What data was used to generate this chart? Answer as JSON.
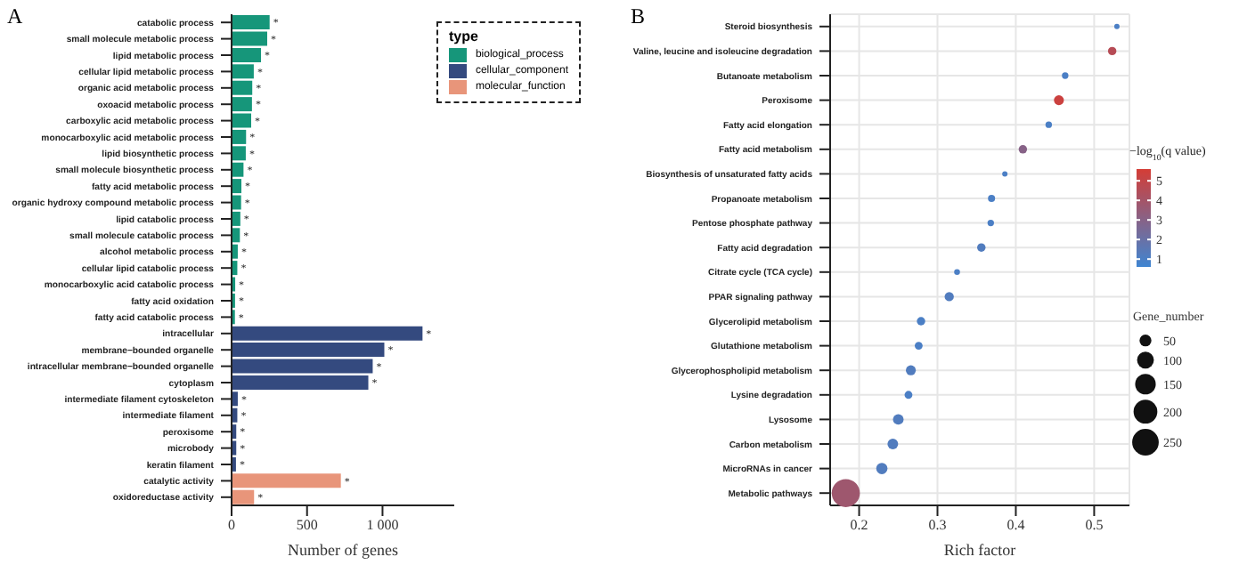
{
  "chart_data": [
    {
      "type": "bar",
      "orientation": "horizontal",
      "annotations": [
        "A"
      ],
      "xlabel": "Number of genes",
      "legend_title": "type",
      "legend": "top right",
      "categories": [
        "catabolic process",
        "small molecule metabolic process",
        "lipid metabolic process",
        "cellular lipid metabolic process",
        "organic acid metabolic process",
        "oxoacid metabolic process",
        "carboxylic acid metabolic process",
        "monocarboxylic acid metabolic process",
        "lipid biosynthetic process",
        "small molecule biosynthetic process",
        "fatty acid metabolic process",
        "organic hydroxy compound metabolic process",
        "lipid catabolic process",
        "small molecule catabolic process",
        "alcohol metabolic process",
        "cellular lipid catabolic process",
        "monocarboxylic acid catabolic process",
        "fatty acid oxidation",
        "fatty acid catabolic process",
        "intracellular",
        "membrane−bounded organelle",
        "intracellular membrane−bounded organelle",
        "cytoplasm",
        "intermediate filament cytoskeleton",
        "intermediate filament",
        "peroxisome",
        "microbody",
        "keratin filament",
        "catalytic activity",
        "oxidoreductase activity"
      ],
      "series": [
        {
          "name": "biological_process",
          "color": "#16967a",
          "values": [
            252,
            236,
            195,
            147,
            137,
            135,
            130,
            96,
            94,
            79,
            65,
            63,
            58,
            55,
            41,
            38,
            24,
            23,
            22,
            null,
            null,
            null,
            null,
            null,
            null,
            null,
            null,
            null,
            null,
            null
          ],
          "value_labels": [
            "*",
            "*",
            "*",
            "*",
            "*",
            "*",
            "*",
            "*",
            "*",
            "*",
            "*",
            "*",
            "*",
            "*",
            "*",
            "*",
            "*",
            "*",
            "*",
            null,
            null,
            null,
            null,
            null,
            null,
            null,
            null,
            null,
            null,
            null
          ]
        },
        {
          "name": "cellular_component",
          "color": "#344a7f",
          "values": [
            null,
            null,
            null,
            null,
            null,
            null,
            null,
            null,
            null,
            null,
            null,
            null,
            null,
            null,
            null,
            null,
            null,
            null,
            null,
            1265,
            1012,
            935,
            906,
            41,
            38,
            31,
            31,
            29,
            null,
            null
          ],
          "value_labels": [
            null,
            null,
            null,
            null,
            null,
            null,
            null,
            null,
            null,
            null,
            null,
            null,
            null,
            null,
            null,
            null,
            null,
            null,
            null,
            "*",
            "*",
            "*",
            "*",
            "*",
            "*",
            "*",
            "*",
            "*",
            null,
            null
          ]
        },
        {
          "name": "molecular_function",
          "color": "#e8957a",
          "values": [
            null,
            null,
            null,
            null,
            null,
            null,
            null,
            null,
            null,
            null,
            null,
            null,
            null,
            null,
            null,
            null,
            null,
            null,
            null,
            null,
            null,
            null,
            null,
            null,
            null,
            null,
            null,
            null,
            724,
            149
          ],
          "value_labels": [
            null,
            null,
            null,
            null,
            null,
            null,
            null,
            null,
            null,
            null,
            null,
            null,
            null,
            null,
            null,
            null,
            null,
            null,
            null,
            null,
            null,
            null,
            null,
            null,
            null,
            null,
            null,
            null,
            "*",
            "*"
          ]
        }
      ],
      "xlim": [
        0,
        1475
      ],
      "xticks": [
        0,
        500,
        {
          "value": 1000,
          "label": "1 000"
        }
      ]
    },
    {
      "type": "bubble",
      "orientation": "horizontal",
      "annotations": [
        "B"
      ],
      "xlabel": "Rich factor",
      "clabel": "−log$_{10}$(q value)",
      "legend_title": "Gene_number",
      "grid": true,
      "categories": [
        "Steroid biosynthesis",
        "Valine, leucine and isoleucine degradation",
        "Butanoate metabolism",
        "Peroxisome",
        "Fatty acid elongation",
        "Fatty acid metabolism",
        "Biosynthesis of unsaturated fatty acids",
        "Propanoate metabolism",
        "Pentose phosphate pathway",
        "Fatty acid degradation",
        "Citrate cycle (TCA cycle)",
        "PPAR signaling pathway",
        "Glycerolipid metabolism",
        "Glutathione metabolism",
        "Glycerophospholipid metabolism",
        "Lysine degradation",
        "Lysosome",
        "Carbon metabolism",
        "MicroRNAs in cancer",
        "Metabolic pathways"
      ],
      "values": [
        0.529,
        0.523,
        0.463,
        0.455,
        0.442,
        0.409,
        0.386,
        0.369,
        0.368,
        0.356,
        0.325,
        0.315,
        0.279,
        0.276,
        0.266,
        0.263,
        0.25,
        0.243,
        0.229,
        0.183
      ],
      "sizes": [
        10,
        25,
        15,
        35,
        15,
        25,
        10,
        18,
        15,
        25,
        12,
        30,
        25,
        22,
        35,
        22,
        40,
        40,
        45,
        280
      ],
      "cvalues": [
        1,
        4.6,
        1,
        5.3,
        1,
        3,
        1,
        1,
        1,
        1.2,
        1,
        1.2,
        1,
        1,
        1.2,
        1,
        1.2,
        1.2,
        1.2,
        3.8
      ],
      "clim": [
        0.6,
        5.6
      ],
      "cticks": [
        1,
        2,
        3,
        4,
        5
      ],
      "size_legend": [
        50,
        100,
        150,
        200,
        250
      ],
      "xlim": [
        0.163,
        0.545
      ],
      "xticks": [
        0.2,
        0.3,
        0.4,
        0.5
      ]
    }
  ]
}
